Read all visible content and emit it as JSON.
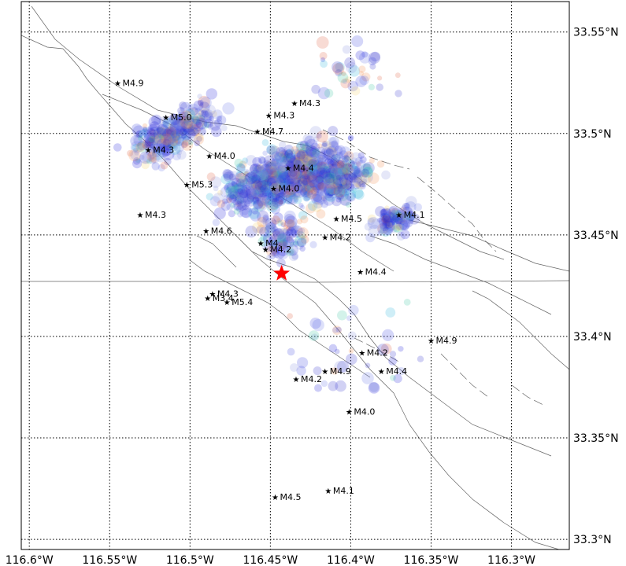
{
  "map": {
    "lon_range": [
      -116.605,
      -116.264
    ],
    "lat_range": [
      33.295,
      33.565
    ],
    "lon_ticks": [
      {
        "value": -116.6,
        "label": "116.6°W"
      },
      {
        "value": -116.55,
        "label": "116.55°W"
      },
      {
        "value": -116.5,
        "label": "116.5°W"
      },
      {
        "value": -116.45,
        "label": "116.45°W"
      },
      {
        "value": -116.4,
        "label": "116.4°W"
      },
      {
        "value": -116.35,
        "label": "116.35°W"
      },
      {
        "value": -116.3,
        "label": "116.3°W"
      }
    ],
    "lat_ticks": [
      {
        "value": 33.55,
        "label": "33.55°N"
      },
      {
        "value": 33.5,
        "label": "33.5°N"
      },
      {
        "value": 33.45,
        "label": "33.45°N"
      },
      {
        "value": 33.4,
        "label": "33.4°N"
      },
      {
        "value": 33.35,
        "label": "33.35°N"
      },
      {
        "value": 33.3,
        "label": "33.3°N"
      }
    ],
    "grid": true,
    "mainshock": {
      "lon": -116.443,
      "lat": 33.431,
      "color": "#ff0000"
    },
    "labeled_events": [
      {
        "lon": -116.545,
        "lat": 33.525,
        "label": "M4.9"
      },
      {
        "lon": -116.435,
        "lat": 33.515,
        "label": "M4.3"
      },
      {
        "lon": -116.451,
        "lat": 33.509,
        "label": "M4.3"
      },
      {
        "lon": -116.515,
        "lat": 33.508,
        "label": "M5.0"
      },
      {
        "lon": -116.458,
        "lat": 33.501,
        "label": "M4.7"
      },
      {
        "lon": -116.526,
        "lat": 33.492,
        "label": "M4.3"
      },
      {
        "lon": -116.488,
        "lat": 33.489,
        "label": "M4.0"
      },
      {
        "lon": -116.439,
        "lat": 33.483,
        "label": "M4.4"
      },
      {
        "lon": -116.502,
        "lat": 33.475,
        "label": "M5.3"
      },
      {
        "lon": -116.448,
        "lat": 33.473,
        "label": "M4.0"
      },
      {
        "lon": -116.531,
        "lat": 33.46,
        "label": "M4.3"
      },
      {
        "lon": -116.37,
        "lat": 33.46,
        "label": "M4.1"
      },
      {
        "lon": -116.409,
        "lat": 33.458,
        "label": "M4.5"
      },
      {
        "lon": -116.49,
        "lat": 33.452,
        "label": "M4.6"
      },
      {
        "lon": -116.416,
        "lat": 33.449,
        "label": "M4.2"
      },
      {
        "lon": -116.456,
        "lat": 33.446,
        "label": "M4."
      },
      {
        "lon": -116.453,
        "lat": 33.443,
        "label": "M4.2"
      },
      {
        "lon": -116.394,
        "lat": 33.432,
        "label": "M4.4"
      },
      {
        "lon": -116.486,
        "lat": 33.421,
        "label": "M4.3"
      },
      {
        "lon": -116.489,
        "lat": 33.419,
        "label": "M3.4"
      },
      {
        "lon": -116.477,
        "lat": 33.417,
        "label": "M5.4"
      },
      {
        "lon": -116.35,
        "lat": 33.398,
        "label": "M4.9"
      },
      {
        "lon": -116.393,
        "lat": 33.392,
        "label": "M4.2"
      },
      {
        "lon": -116.416,
        "lat": 33.383,
        "label": "M4.9"
      },
      {
        "lon": -116.381,
        "lat": 33.383,
        "label": "M4.4"
      },
      {
        "lon": -116.434,
        "lat": 33.379,
        "label": "M4.2"
      },
      {
        "lon": -116.401,
        "lat": 33.363,
        "label": "M4.0"
      },
      {
        "lon": -116.447,
        "lat": 33.321,
        "label": "M4.5"
      },
      {
        "lon": -116.414,
        "lat": 33.324,
        "label": "M4.1"
      }
    ],
    "colors": {
      "grid": "#000000",
      "fault": "#666666",
      "cluster_palette": [
        "#1a1adb",
        "#2e2ecc",
        "#3a46e0",
        "#6470e6",
        "#8a90dd",
        "#25b3d9",
        "#38c6a0",
        "#f08a4b",
        "#e05a3a",
        "#f6d36a"
      ]
    }
  }
}
